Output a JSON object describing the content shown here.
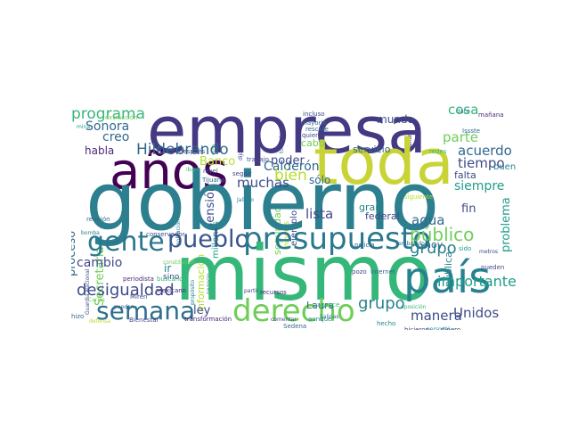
{
  "colors": {
    "purple_dark": "#440154",
    "purple": "#482878",
    "indigo": "#3e4a89",
    "blue": "#31688e",
    "teal_blue": "#26828e",
    "teal": "#1f9e89",
    "green": "#35b779",
    "light_green": "#6ece58",
    "yellow_green": "#b5de2b",
    "yellow": "#c8d436"
  },
  "words": [
    {
      "text": "gobierno",
      "color": "#2c7f8e"
    },
    {
      "text": "empresa",
      "color": "#443a83"
    },
    {
      "text": "mismo",
      "color": "#35b779"
    },
    {
      "text": "toda",
      "color": "#c8d436"
    },
    {
      "text": "años",
      "color": "#440154"
    },
    {
      "text": "país",
      "color": "#26828e"
    },
    {
      "text": "presupuesto",
      "color": "#2a788e"
    },
    {
      "text": "pueblo",
      "color": "#39568c"
    },
    {
      "text": "gente",
      "color": "#2a788e"
    },
    {
      "text": "derecho",
      "color": "#6ece58"
    },
    {
      "text": "semana",
      "color": "#2e6e8e"
    },
    {
      "text": "Secretaría",
      "color": "#6ece58"
    },
    {
      "text": "Hildebrando",
      "color": "#31688e"
    },
    {
      "text": "desigualdad",
      "color": "#3e4a89"
    },
    {
      "text": "programa",
      "color": "#35b779"
    },
    {
      "text": "muchas",
      "color": "#3e4a89"
    },
    {
      "text": "Calderón",
      "color": "#31688e"
    },
    {
      "text": "poder",
      "color": "#3e4a89"
    },
    {
      "text": "público",
      "color": "#6ece58"
    },
    {
      "text": "creo",
      "color": "#31688e"
    },
    {
      "text": "grupo",
      "color": "#26828e"
    },
    {
      "text": "manera",
      "color": "#3e4a89"
    },
    {
      "text": "Unidos",
      "color": "#3e4a89"
    },
    {
      "text": "importante",
      "color": "#1f9e89"
    },
    {
      "text": "acuerdo",
      "color": "#31688e"
    },
    {
      "text": "tiempo",
      "color": "#3e4a89"
    },
    {
      "text": "parte",
      "color": "#6ece58"
    },
    {
      "text": "cosa",
      "color": "#35b779"
    },
    {
      "text": "pensión",
      "color": "#3e4a89"
    },
    {
      "text": "proceso",
      "color": "#31688e"
    },
    {
      "text": "cambio",
      "color": "#3e4a89"
    },
    {
      "text": "lista",
      "color": "#3e4a89"
    },
    {
      "text": "bien",
      "color": "#b5de2b"
    },
    {
      "text": "agua",
      "color": "#31688e"
    },
    {
      "text": "problema",
      "color": "#1f9e89"
    },
    {
      "text": "pública",
      "color": "#26828e"
    },
    {
      "text": "Sonora",
      "color": "#31688e"
    },
    {
      "text": "habla",
      "color": "#482878"
    },
    {
      "text": "servicio",
      "color": "#31688e"
    },
    {
      "text": "falta",
      "color": "#3e4a89"
    },
    {
      "text": "sólo",
      "color": "#31688e"
    },
    {
      "text": "siempre",
      "color": "#1f9e89"
    },
    {
      "text": "fin",
      "color": "#3e4a89"
    },
    {
      "text": "ley",
      "color": "#3e4a89"
    },
    {
      "text": "Laura",
      "color": "#31688e"
    },
    {
      "text": "información",
      "color": "#b5de2b"
    },
    {
      "text": "seguridad",
      "color": "#6ece58"
    },
    {
      "text": "millones",
      "color": "#1f9e89"
    },
    {
      "text": "hoy",
      "color": "#31688e"
    },
    {
      "text": "gran",
      "color": "#26828e"
    },
    {
      "text": "federal",
      "color": "#3e4a89"
    },
    {
      "text": "ejemplo",
      "color": "#3e4a89"
    },
    {
      "text": "Banco",
      "color": "#b5de2b"
    },
    {
      "text": "haciendo",
      "color": "#35b779"
    },
    {
      "text": "cabo",
      "color": "#6ece58"
    },
    {
      "text": "mundo",
      "color": "#3e4a89"
    },
    {
      "text": "buen",
      "color": "#26828e"
    },
    {
      "text": "mineros",
      "color": "#b5de2b"
    },
    {
      "text": "ir",
      "color": "#26828e"
    },
    {
      "text": "sino",
      "color": "#3e4a89"
    },
    {
      "text": "vida",
      "color": "#35b779"
    },
    {
      "text": "después",
      "color": "#3e4a89"
    },
    {
      "text": "extracción",
      "color": "#6ece58"
    },
    {
      "text": "mina",
      "color": "#1f9e89"
    },
    {
      "text": "nivel",
      "color": "#31688e"
    },
    {
      "text": "Tijuana",
      "color": "#31688e"
    },
    {
      "text": "negocio",
      "color": "#26828e"
    },
    {
      "text": "iban",
      "color": "#35b779"
    },
    {
      "text": "reunión",
      "color": "#31688e"
    },
    {
      "text": "Guardia Nacional",
      "color": "#3e4a89"
    },
    {
      "text": "bomba",
      "color": "#26828e"
    },
    {
      "text": "población",
      "color": "#26828e"
    },
    {
      "text": "periodista",
      "color": "#482878"
    },
    {
      "text": "buscando",
      "color": "#35b779"
    },
    {
      "text": "Miren",
      "color": "#3e4a89"
    },
    {
      "text": "Bienestar",
      "color": "#3e4a89"
    },
    {
      "text": "transformación",
      "color": "#482878"
    },
    {
      "text": "hizo",
      "color": "#31688e"
    },
    {
      "text": "Carlos",
      "color": "#6ece58"
    },
    {
      "text": "defensa",
      "color": "#b5de2b"
    },
    {
      "text": "puedan",
      "color": "#31688e"
    },
    {
      "text": "conservador",
      "color": "#3e4a89"
    },
    {
      "text": "constitución",
      "color": "#6ece58"
    },
    {
      "text": "mexicano",
      "color": "#482878"
    },
    {
      "text": "propósito",
      "color": "#26828e"
    },
    {
      "text": "partir",
      "color": "#3e4a89"
    },
    {
      "text": "recursos",
      "color": "#482878"
    },
    {
      "text": "comentar",
      "color": "#3e4a89"
    },
    {
      "text": "Salinas",
      "color": "#31688e"
    },
    {
      "text": "Sedena",
      "color": "#31688e"
    },
    {
      "text": "aunque",
      "color": "#26828e"
    },
    {
      "text": "avance",
      "color": "#35b779"
    },
    {
      "text": "pozo",
      "color": "#3e4a89"
    },
    {
      "text": "internet",
      "color": "#31688e"
    },
    {
      "text": "hicieron",
      "color": "#3e4a89"
    },
    {
      "text": "dinero",
      "color": "#3e4a89"
    },
    {
      "text": "hecho",
      "color": "#26828e"
    },
    {
      "text": "personal",
      "color": "#26828e"
    },
    {
      "text": "policía",
      "color": "#31688e"
    },
    {
      "text": "oposición",
      "color": "#35b779"
    },
    {
      "text": "embajador",
      "color": "#31688e"
    },
    {
      "text": "sido",
      "color": "#1f9e89"
    },
    {
      "text": "metros",
      "color": "#3e4a89"
    },
    {
      "text": "pueden",
      "color": "#3e4a89"
    },
    {
      "text": "elecciones",
      "color": "#6ece58"
    },
    {
      "text": "incluso",
      "color": "#3e4a89"
    },
    {
      "text": "mayoría",
      "color": "#31688e"
    },
    {
      "text": "rescate",
      "color": "#31688e"
    },
    {
      "text": "quieren",
      "color": "#3e4a89"
    },
    {
      "text": "dato",
      "color": "#26828e"
    },
    {
      "text": "mañana",
      "color": "#482878"
    },
    {
      "text": "Issste",
      "color": "#31688e"
    },
    {
      "text": "redes",
      "color": "#35b779"
    },
    {
      "text": "siguiente",
      "color": "#b5de2b"
    },
    {
      "text": "todavía",
      "color": "#26828e"
    },
    {
      "text": "dijo",
      "color": "#3e4a89"
    },
    {
      "text": "trabajo",
      "color": "#3e4a89"
    },
    {
      "text": "seguir",
      "color": "#3e4a89"
    },
    {
      "text": "Jalisco",
      "color": "#26828e"
    }
  ]
}
